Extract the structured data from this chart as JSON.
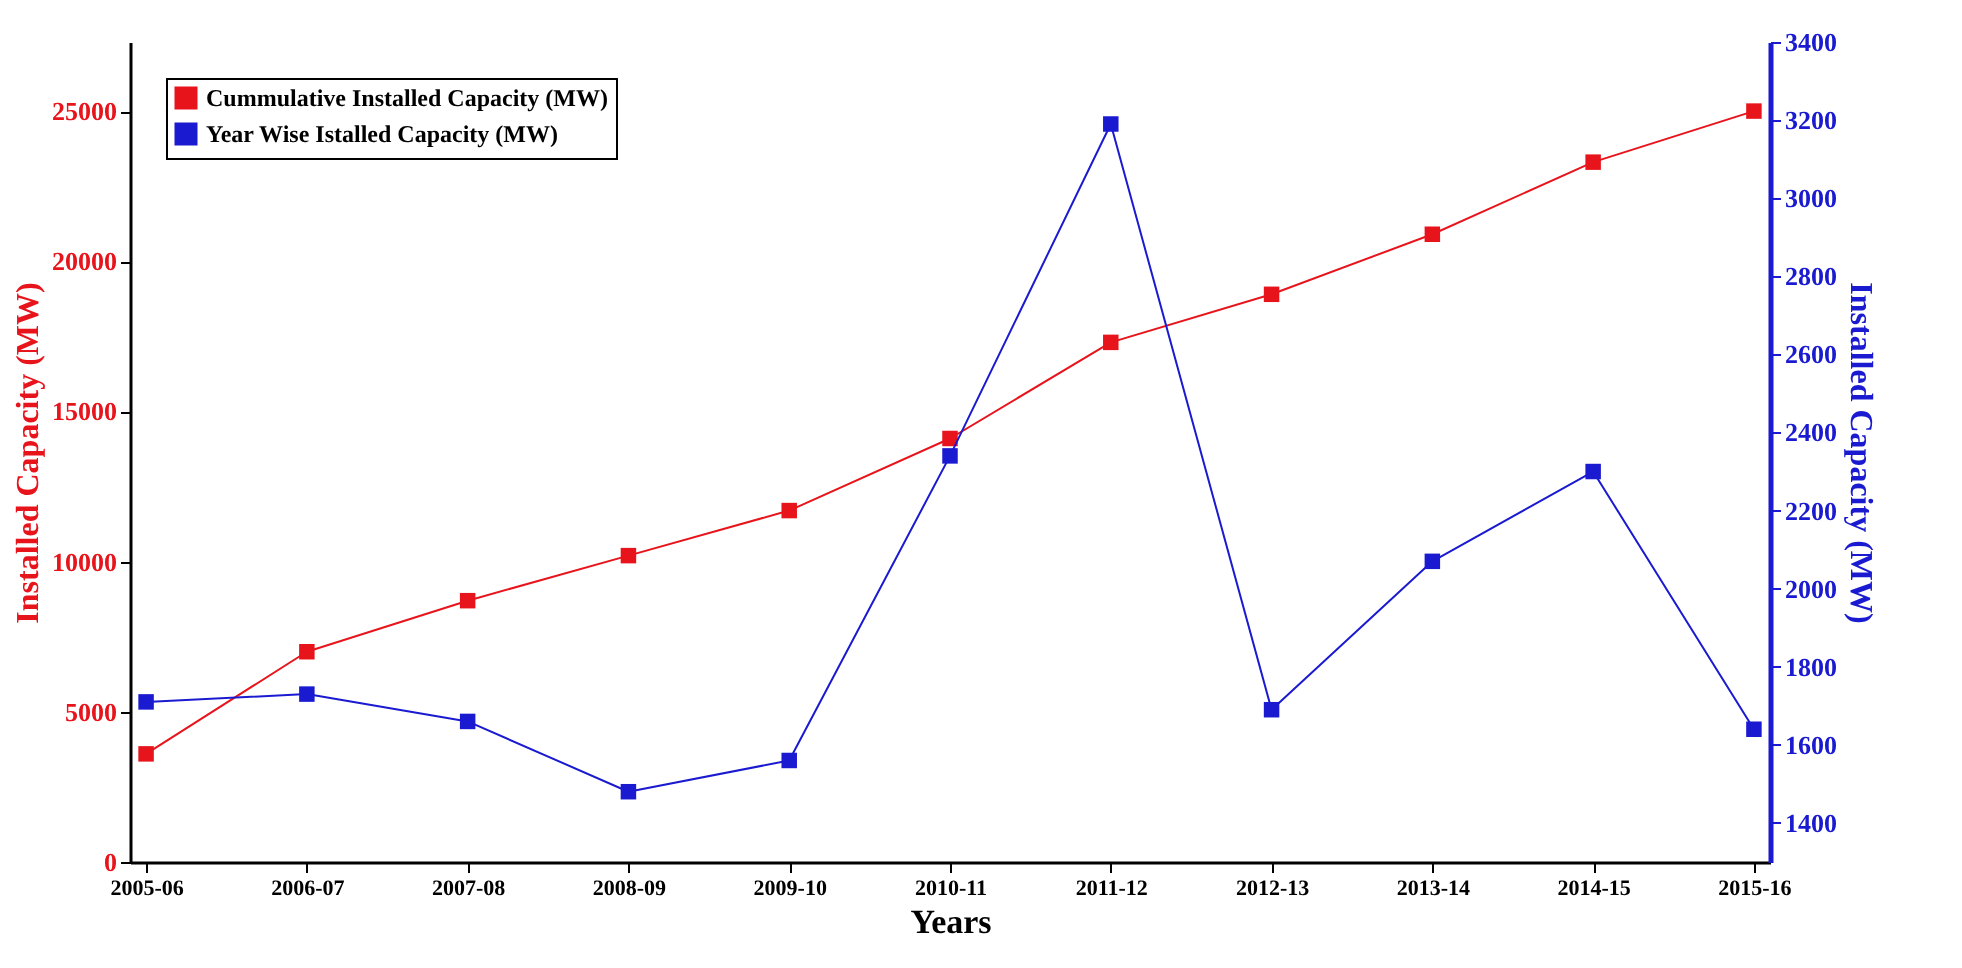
{
  "chart_data": {
    "type": "line",
    "xlabel": "Years",
    "ylabel": "Installed Capacity (MW)",
    "y2label": "Installed Capacity (MW)",
    "categories": [
      "2005-06",
      "2006-07",
      "2007-08",
      "2008-09",
      "2009-10",
      "2010-11",
      "2011-12",
      "2012-13",
      "2013-14",
      "2014-15",
      "2015-16"
    ],
    "series": [
      {
        "name": "Cummulative Installed Capacity (MW)",
        "color": "#e8141c",
        "values": [
          3600,
          7000,
          8700,
          10200,
          11700,
          14100,
          17300,
          18900,
          20900,
          23300,
          25000
        ]
      },
      {
        "name": "Year Wise Istalled Capacity (MW)",
        "color": "#1a1ad0",
        "axis": "y2",
        "values": [
          1710,
          1730,
          1660,
          1480,
          1560,
          2340,
          3190,
          1690,
          2070,
          2300,
          1640
        ]
      }
    ],
    "ylim": [
      0,
      27300
    ],
    "yticks": [
      0,
      5000,
      10000,
      15000,
      20000,
      25000
    ],
    "y2lim": [
      1300,
      3400
    ],
    "y2ticks": [
      1400,
      1600,
      1800,
      2000,
      2200,
      2400,
      2600,
      2800,
      3000,
      3200,
      3400
    ],
    "marker": "square",
    "legend": "top left",
    "grid": false
  }
}
